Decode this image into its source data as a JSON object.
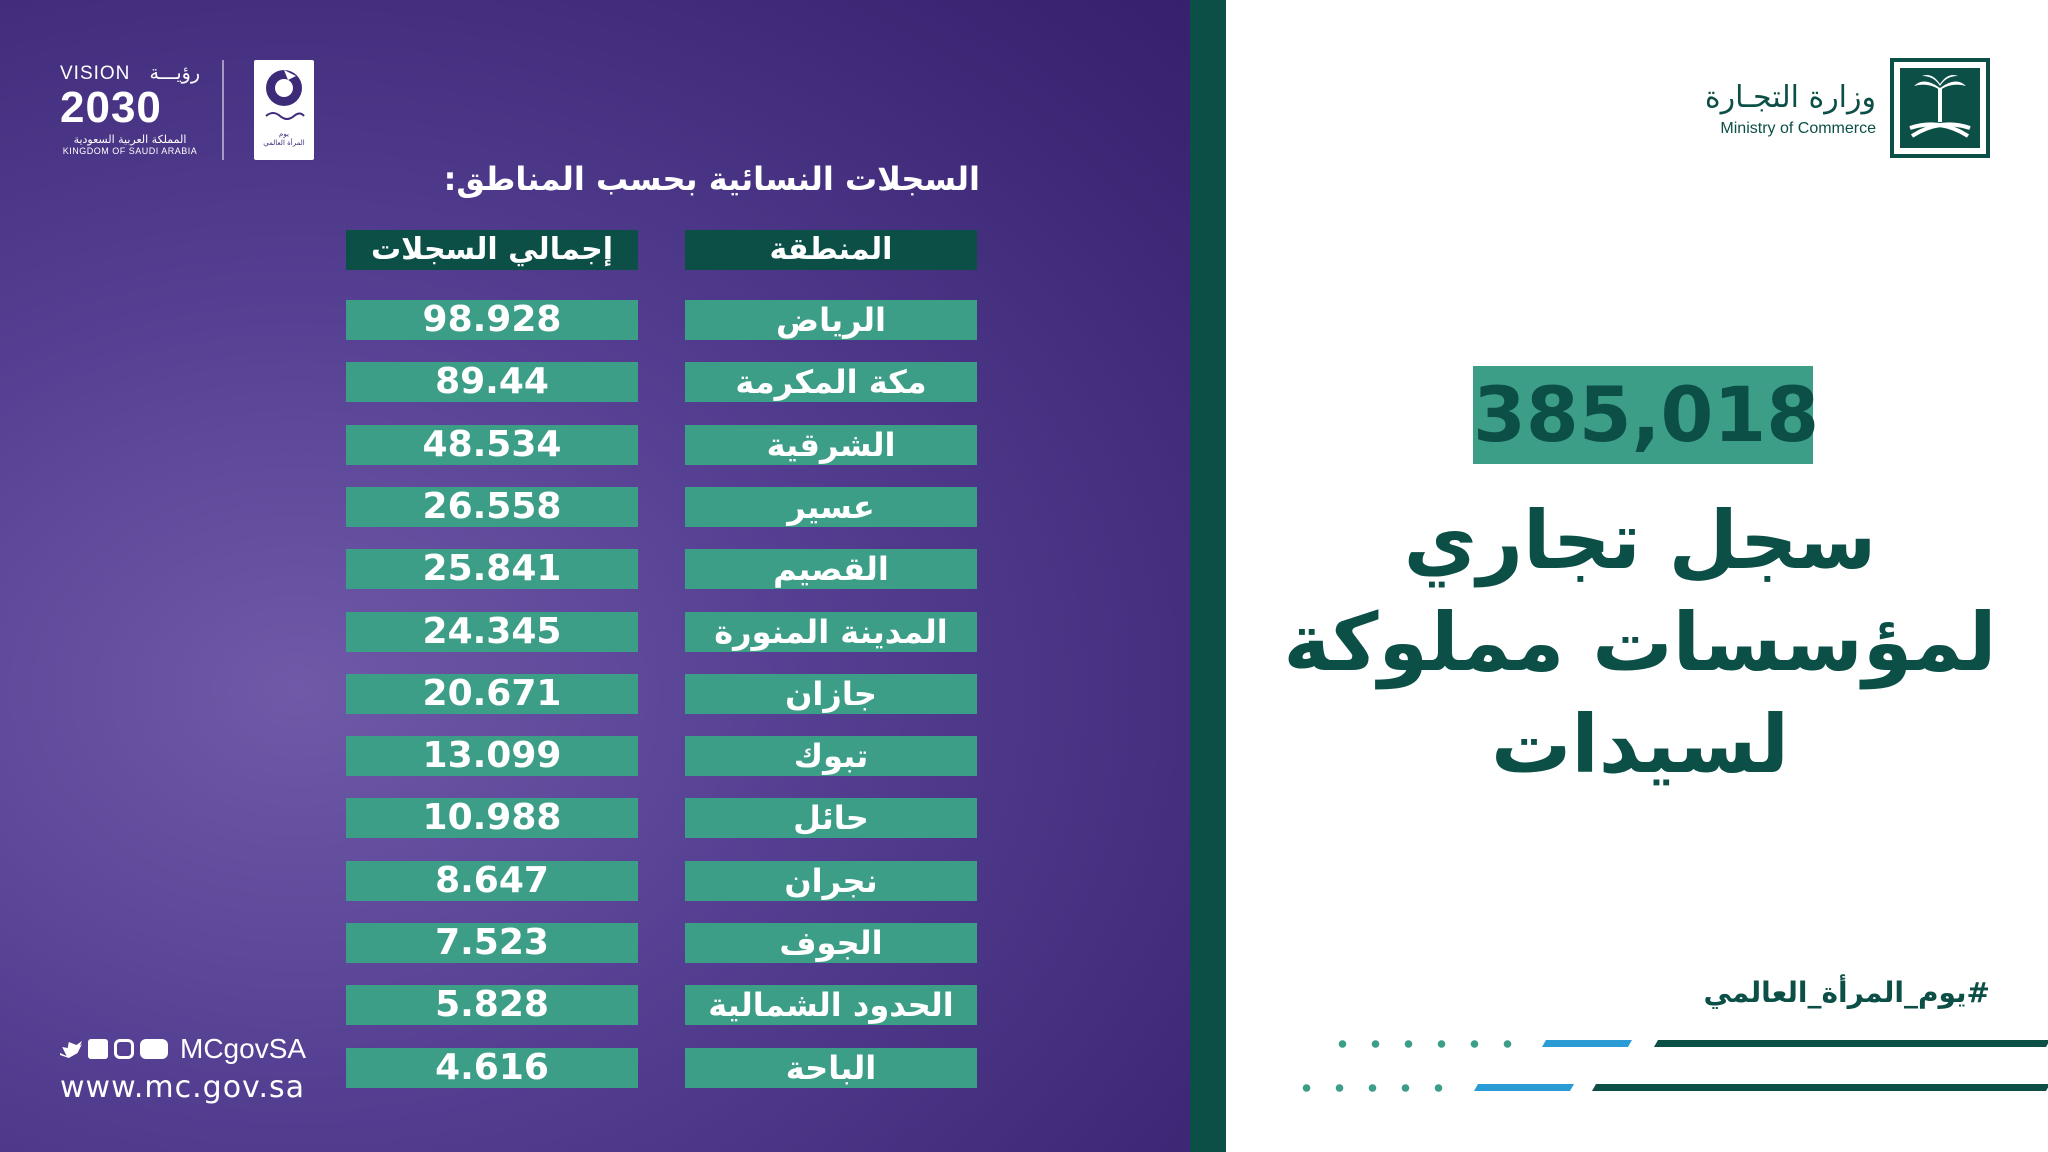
{
  "vision": {
    "top_en": "VISION",
    "top_ar": "رؤيـــة",
    "year": "2030",
    "country_ar": "المملكة العربية السعودية",
    "country_en": "KINGDOM OF SAUDI ARABIA"
  },
  "womens_logo": {
    "text_line1": "يوم",
    "text_line2": "المرأة العالمي"
  },
  "table": {
    "title": "السجلات النسائية بحسب المناطق:",
    "header_region": "المنطقة",
    "header_total": "إجمالي السجلات",
    "rows": [
      {
        "region": "الرياض",
        "value": "98.928"
      },
      {
        "region": "مكة المكرمة",
        "value": "89.44"
      },
      {
        "region": "الشرقية",
        "value": "48.534"
      },
      {
        "region": "عسير",
        "value": "26.558"
      },
      {
        "region": "القصيم",
        "value": "25.841"
      },
      {
        "region": "المدينة المنورة",
        "value": "24.345"
      },
      {
        "region": "جازان",
        "value": "20.671"
      },
      {
        "region": "تبوك",
        "value": "13.099"
      },
      {
        "region": "حائل",
        "value": "10.988"
      },
      {
        "region": "نجران",
        "value": "8.647"
      },
      {
        "region": "الجوف",
        "value": "7.523"
      },
      {
        "region": "الحدود الشمالية",
        "value": "5.828"
      },
      {
        "region": "الباحة",
        "value": "4.616"
      }
    ]
  },
  "social": {
    "handle": "MCgovSA",
    "website": "www.mc.gov.sa",
    "icons": [
      "twitter-icon",
      "facebook-icon",
      "instagram-icon",
      "youtube-icon"
    ]
  },
  "ministry": {
    "name_ar": "وزارة التجـارة",
    "name_en": "Ministry of Commerce"
  },
  "headline": {
    "number": "385,018",
    "line1": "سجل تجاري",
    "line2": "لمؤسسات مملوكة",
    "line3": "لسيدات"
  },
  "hashtag": "#يوم_المرأة_العالمي",
  "colors": {
    "purple": "#4a3585",
    "dark_green": "#0c4f47",
    "teal": "#3d9e88",
    "blue": "#2b9bd6"
  }
}
